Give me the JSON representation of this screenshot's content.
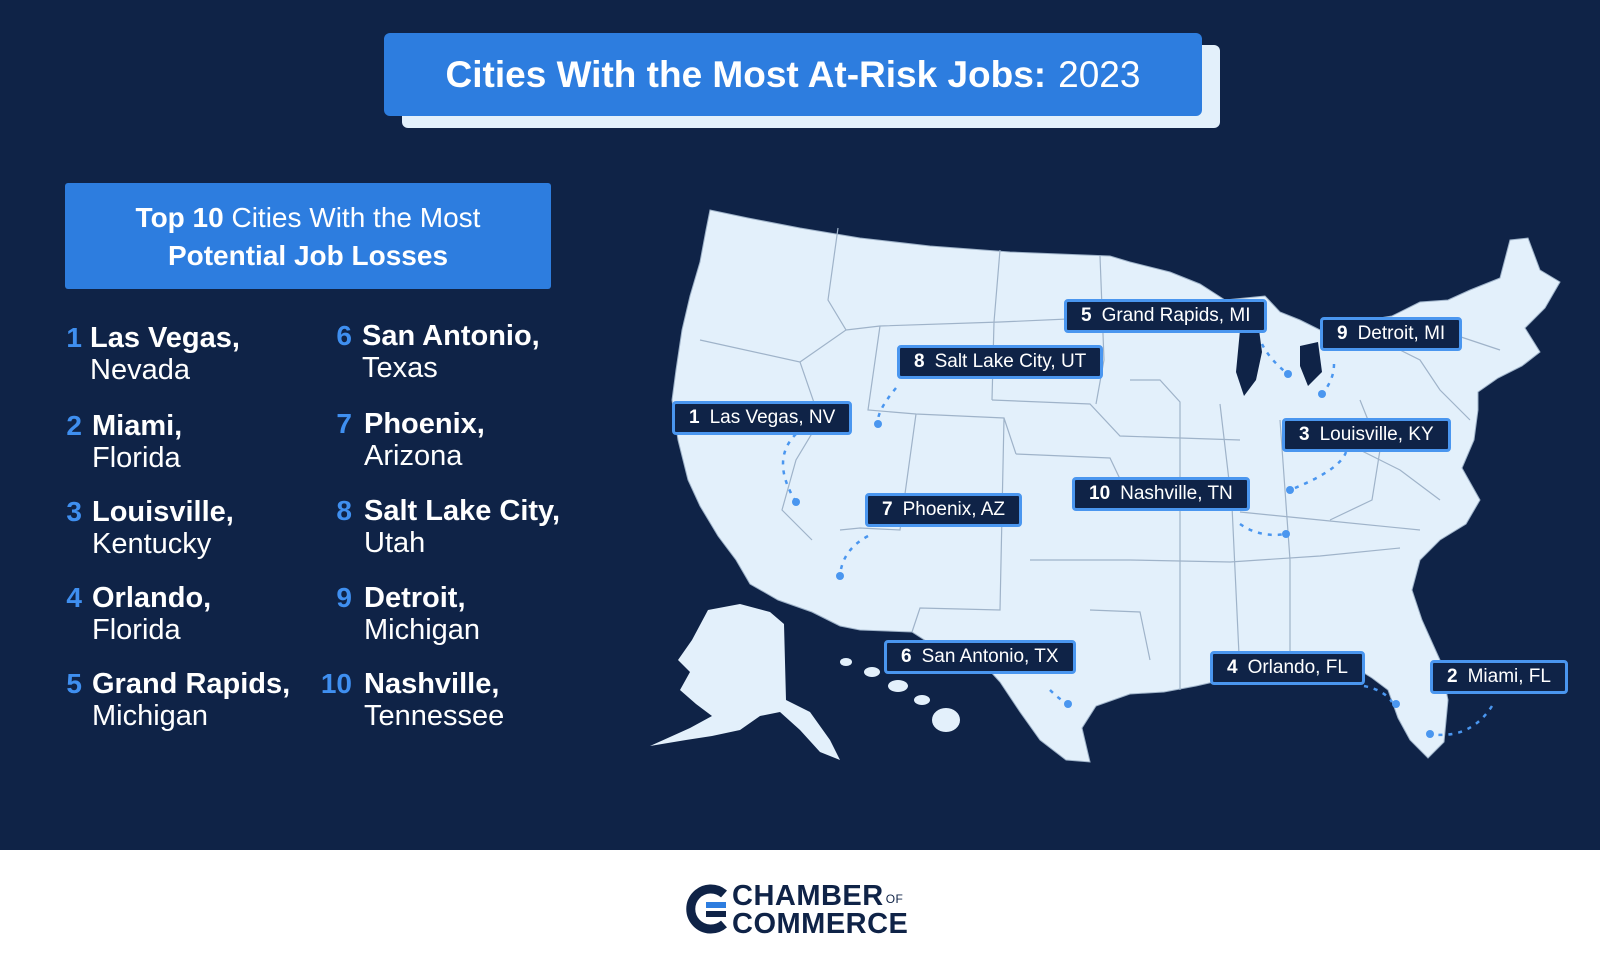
{
  "title": {
    "bold": "Cities With the Most At-Risk Jobs:",
    "year": "2023"
  },
  "ranking_header": {
    "lead_bold": "Top 10",
    "lead": "Cities With the Most",
    "line2": "Potential Job Losses"
  },
  "ranking": [
    {
      "rank": "1",
      "city": "Las Vegas,",
      "state": "Nevada"
    },
    {
      "rank": "2",
      "city": "Miami,",
      "state": "Florida"
    },
    {
      "rank": "3",
      "city": "Louisville,",
      "state": "Kentucky"
    },
    {
      "rank": "4",
      "city": "Orlando,",
      "state": "Florida"
    },
    {
      "rank": "5",
      "city": "Grand Rapids,",
      "state": "Michigan"
    },
    {
      "rank": "6",
      "city": "San Antonio,",
      "state": "Texas"
    },
    {
      "rank": "7",
      "city": "Phoenix,",
      "state": "Arizona"
    },
    {
      "rank": "8",
      "city": "Salt Lake City,",
      "state": "Utah"
    },
    {
      "rank": "9",
      "city": "Detroit,",
      "state": "Michigan"
    },
    {
      "rank": "10",
      "city": "Nashville,",
      "state": "Tennessee"
    }
  ],
  "map_labels": [
    {
      "rank": "1",
      "label": "Las Vegas, NV"
    },
    {
      "rank": "2",
      "label": "Miami, FL"
    },
    {
      "rank": "3",
      "label": "Louisville, KY"
    },
    {
      "rank": "4",
      "label": "Orlando, FL"
    },
    {
      "rank": "5",
      "label": "Grand Rapids, MI"
    },
    {
      "rank": "6",
      "label": "San Antonio, TX"
    },
    {
      "rank": "7",
      "label": "Phoenix, AZ"
    },
    {
      "rank": "8",
      "label": "Salt Lake City, UT"
    },
    {
      "rank": "9",
      "label": "Detroit, MI"
    },
    {
      "rank": "10",
      "label": "Nashville, TN"
    }
  ],
  "footer": {
    "logo_line1": "CHAMBER",
    "logo_of": "OF",
    "logo_line2": "COMMERCE"
  },
  "colors": {
    "background": "#0f2347",
    "accent": "#2d7ddf",
    "map_fill": "#e3f0fb",
    "footer": "#ffffff"
  }
}
